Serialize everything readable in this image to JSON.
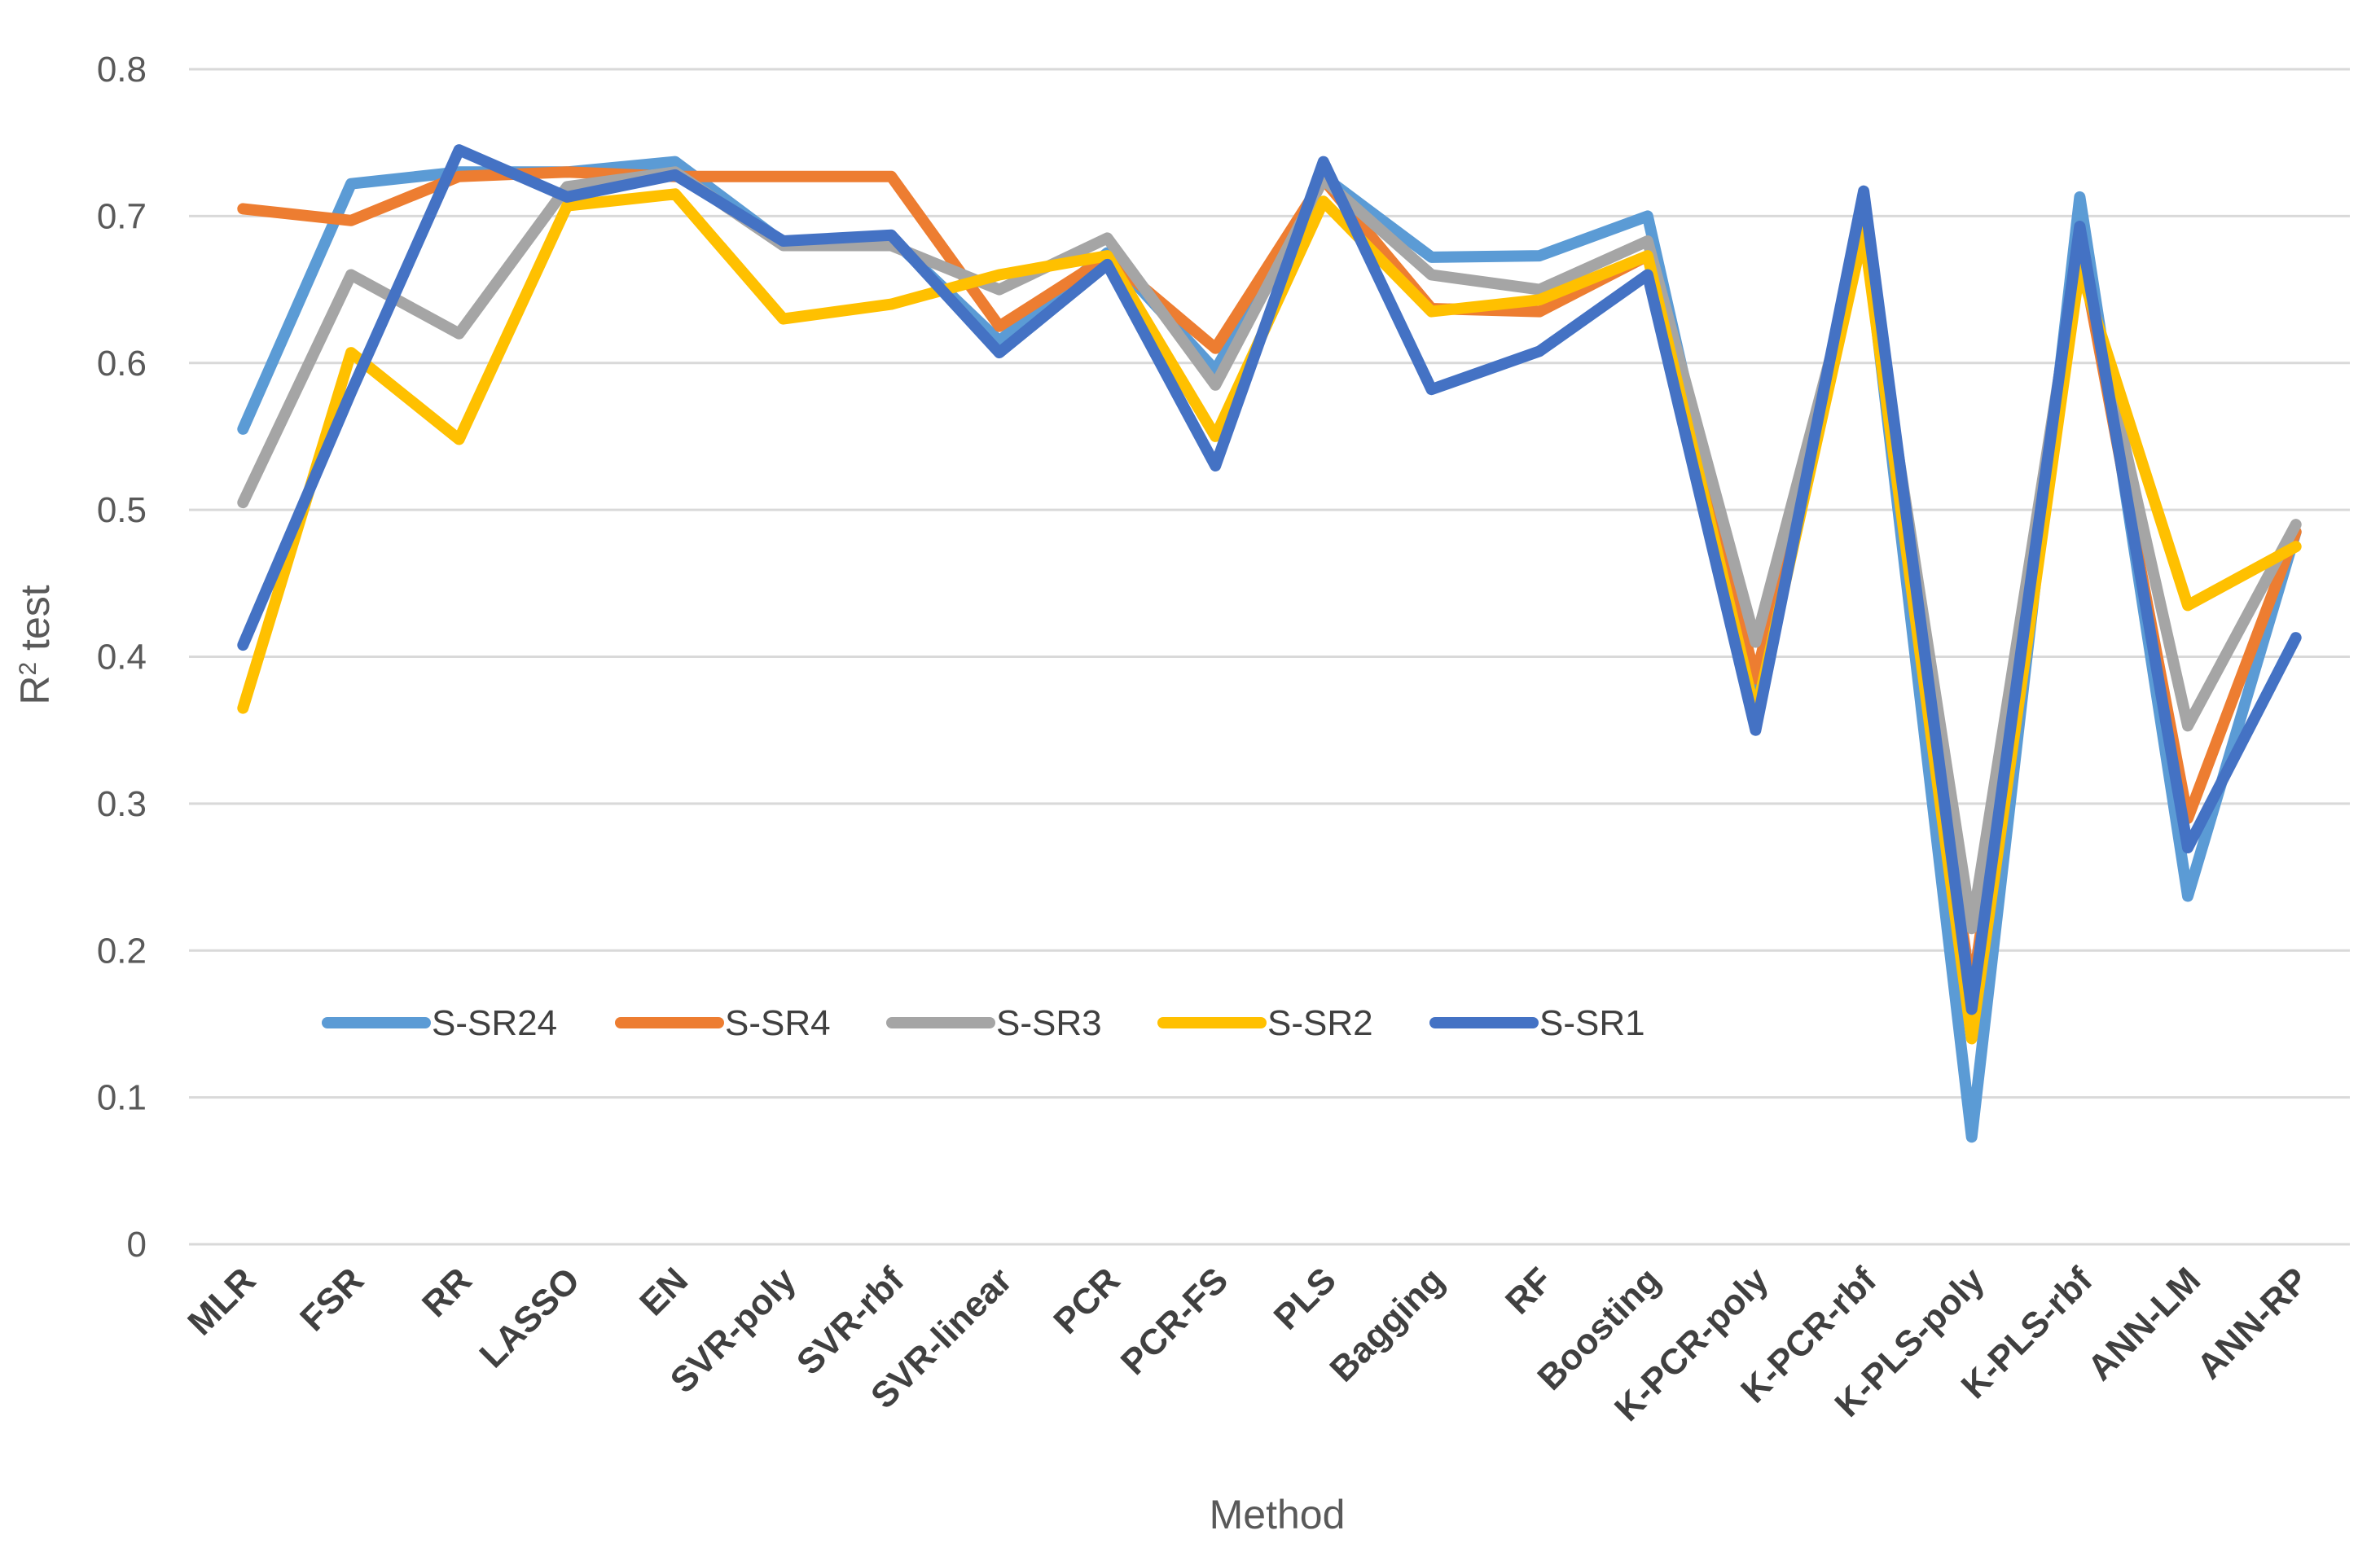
{
  "chart_data": {
    "type": "line",
    "title": "",
    "xlabel": "Method",
    "ylabel_main": "R",
    "ylabel_sup": "2",
    "ylabel_rest": " test",
    "ylim": [
      0,
      0.8
    ],
    "yticks": [
      "0",
      "0.1",
      "0.2",
      "0.3",
      "0.4",
      "0.5",
      "0.6",
      "0.7",
      "0.8"
    ],
    "grid": true,
    "legend_position": "lower-left",
    "categories": [
      "MLR",
      "FSR",
      "RR",
      "LASSO",
      "EN",
      "SVR-poly",
      "SVR-rbf",
      "SVR-linear",
      "PCR",
      "PCR-FS",
      "PLS",
      "Bagging",
      "RF",
      "Boosting",
      "K-PCR-poly",
      "K-PCR-rbf",
      "K-PLS-poly",
      "K-PLS-rbf",
      "ANN-LM",
      "ANN-RP"
    ],
    "series": [
      {
        "name": "S-SR24",
        "color": "#5B9BD5",
        "values": [
          0.555,
          0.722,
          0.73,
          0.73,
          0.737,
          0.682,
          0.685,
          0.615,
          0.675,
          0.595,
          0.727,
          0.672,
          0.673,
          0.7,
          0.375,
          0.7,
          0.073,
          0.713,
          0.237,
          0.485
        ]
      },
      {
        "name": "S-SR4",
        "color": "#ED7D31",
        "values": [
          0.705,
          0.697,
          0.727,
          0.73,
          0.727,
          0.727,
          0.727,
          0.625,
          0.672,
          0.61,
          0.725,
          0.637,
          0.635,
          0.673,
          0.385,
          0.69,
          0.17,
          0.68,
          0.29,
          0.485
        ]
      },
      {
        "name": "S-SR3",
        "color": "#A5A5A5",
        "values": [
          0.505,
          0.66,
          0.62,
          0.72,
          0.73,
          0.68,
          0.68,
          0.65,
          0.685,
          0.585,
          0.725,
          0.66,
          0.65,
          0.683,
          0.41,
          0.69,
          0.215,
          0.68,
          0.353,
          0.49
        ]
      },
      {
        "name": "S-SR2",
        "color": "#FFC000",
        "values": [
          0.365,
          0.607,
          0.548,
          0.707,
          0.715,
          0.63,
          0.64,
          0.66,
          0.673,
          0.55,
          0.71,
          0.635,
          0.643,
          0.673,
          0.36,
          0.69,
          0.14,
          0.665,
          0.435,
          0.475
        ]
      },
      {
        "name": "S-SR1",
        "color": "#4472C4",
        "values": [
          0.408,
          0.58,
          0.745,
          0.713,
          0.728,
          0.683,
          0.687,
          0.607,
          0.667,
          0.53,
          0.737,
          0.582,
          0.608,
          0.66,
          0.35,
          0.717,
          0.16,
          0.693,
          0.27,
          0.413
        ]
      }
    ]
  }
}
